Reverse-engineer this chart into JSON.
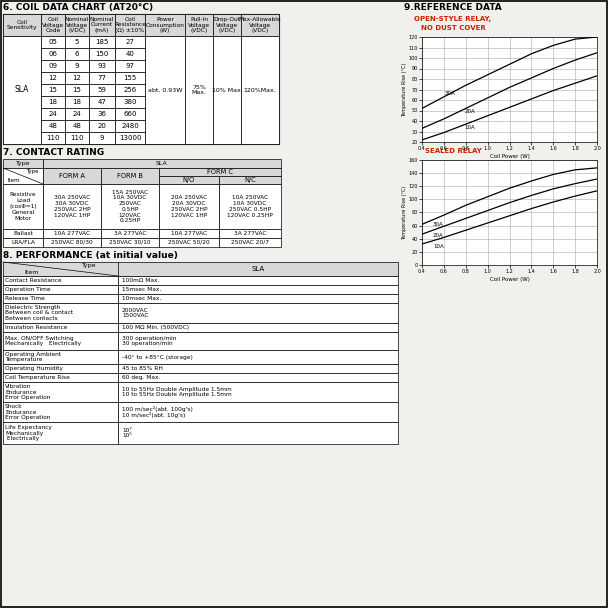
{
  "title_section6": "6. COIL DATA CHART (AT20°C)",
  "title_section7": "7. CONTACT RATING",
  "title_section8": "8. PERFORMANCE (at initial value)",
  "title_section9": "9.REFERENCE DATA",
  "coil_headers": [
    "Coil\nSensitivity",
    "Coil\nVoltage\nCode",
    "Nominal\nVoltage\n(VDC)",
    "Nominal\nCurrent\n(mA)",
    "Coil\nResistance\n(Ω) ±10%",
    "Power\nConsumption\n(W)",
    "Pull-In\nVoltage\n(VDC)",
    "Drop-Out\nVoltage\n(VDC)",
    "Max-Allowable\nVoltage\n(VDC)"
  ],
  "coil_rows": [
    [
      "05",
      "5",
      "185",
      "27"
    ],
    [
      "06",
      "6",
      "150",
      "40"
    ],
    [
      "09",
      "9",
      "93",
      "97"
    ],
    [
      "12",
      "12",
      "77",
      "155"
    ],
    [
      "15",
      "15",
      "59",
      "256"
    ],
    [
      "18",
      "18",
      "47",
      "380"
    ],
    [
      "24",
      "24",
      "36",
      "660"
    ],
    [
      "48",
      "48",
      "20",
      "2480"
    ],
    [
      "110",
      "110",
      "9",
      "13000"
    ]
  ],
  "ref_open_label": "OPEN-STYLE RELAY,",
  "ref_nodustcover": "NO DUST COVER",
  "ref_sealed_label": "SEALED RELAY",
  "ref_coil_power_label": "Coil Power (W)",
  "ref_temp_label1": "Temperature Rise (°C)",
  "open_x": [
    0.4,
    0.6,
    0.8,
    1.0,
    1.2,
    1.4,
    1.6,
    1.8,
    2.0
  ],
  "open_30A_y": [
    52,
    63,
    74,
    84,
    94,
    104,
    112,
    118,
    120
  ],
  "open_20A_y": [
    33,
    42,
    52,
    62,
    72,
    81,
    90,
    98,
    105
  ],
  "open_10A_y": [
    22,
    29,
    37,
    45,
    53,
    61,
    69,
    76,
    83
  ],
  "sealed_x": [
    0.4,
    0.6,
    0.8,
    1.0,
    1.2,
    1.4,
    1.6,
    1.8,
    2.0
  ],
  "sealed_top_y": [
    62,
    76,
    91,
    104,
    117,
    128,
    138,
    145,
    148
  ],
  "sealed_mid_y": [
    47,
    59,
    71,
    83,
    95,
    106,
    116,
    124,
    131
  ],
  "sealed_bot_y": [
    32,
    42,
    53,
    64,
    75,
    86,
    96,
    105,
    113
  ],
  "bg_color": "#f0f0ec",
  "white": "#ffffff",
  "header_bg": "#d8d8d8",
  "black": "#000000",
  "red_color": "#cc2200",
  "grid_color": "#999999"
}
